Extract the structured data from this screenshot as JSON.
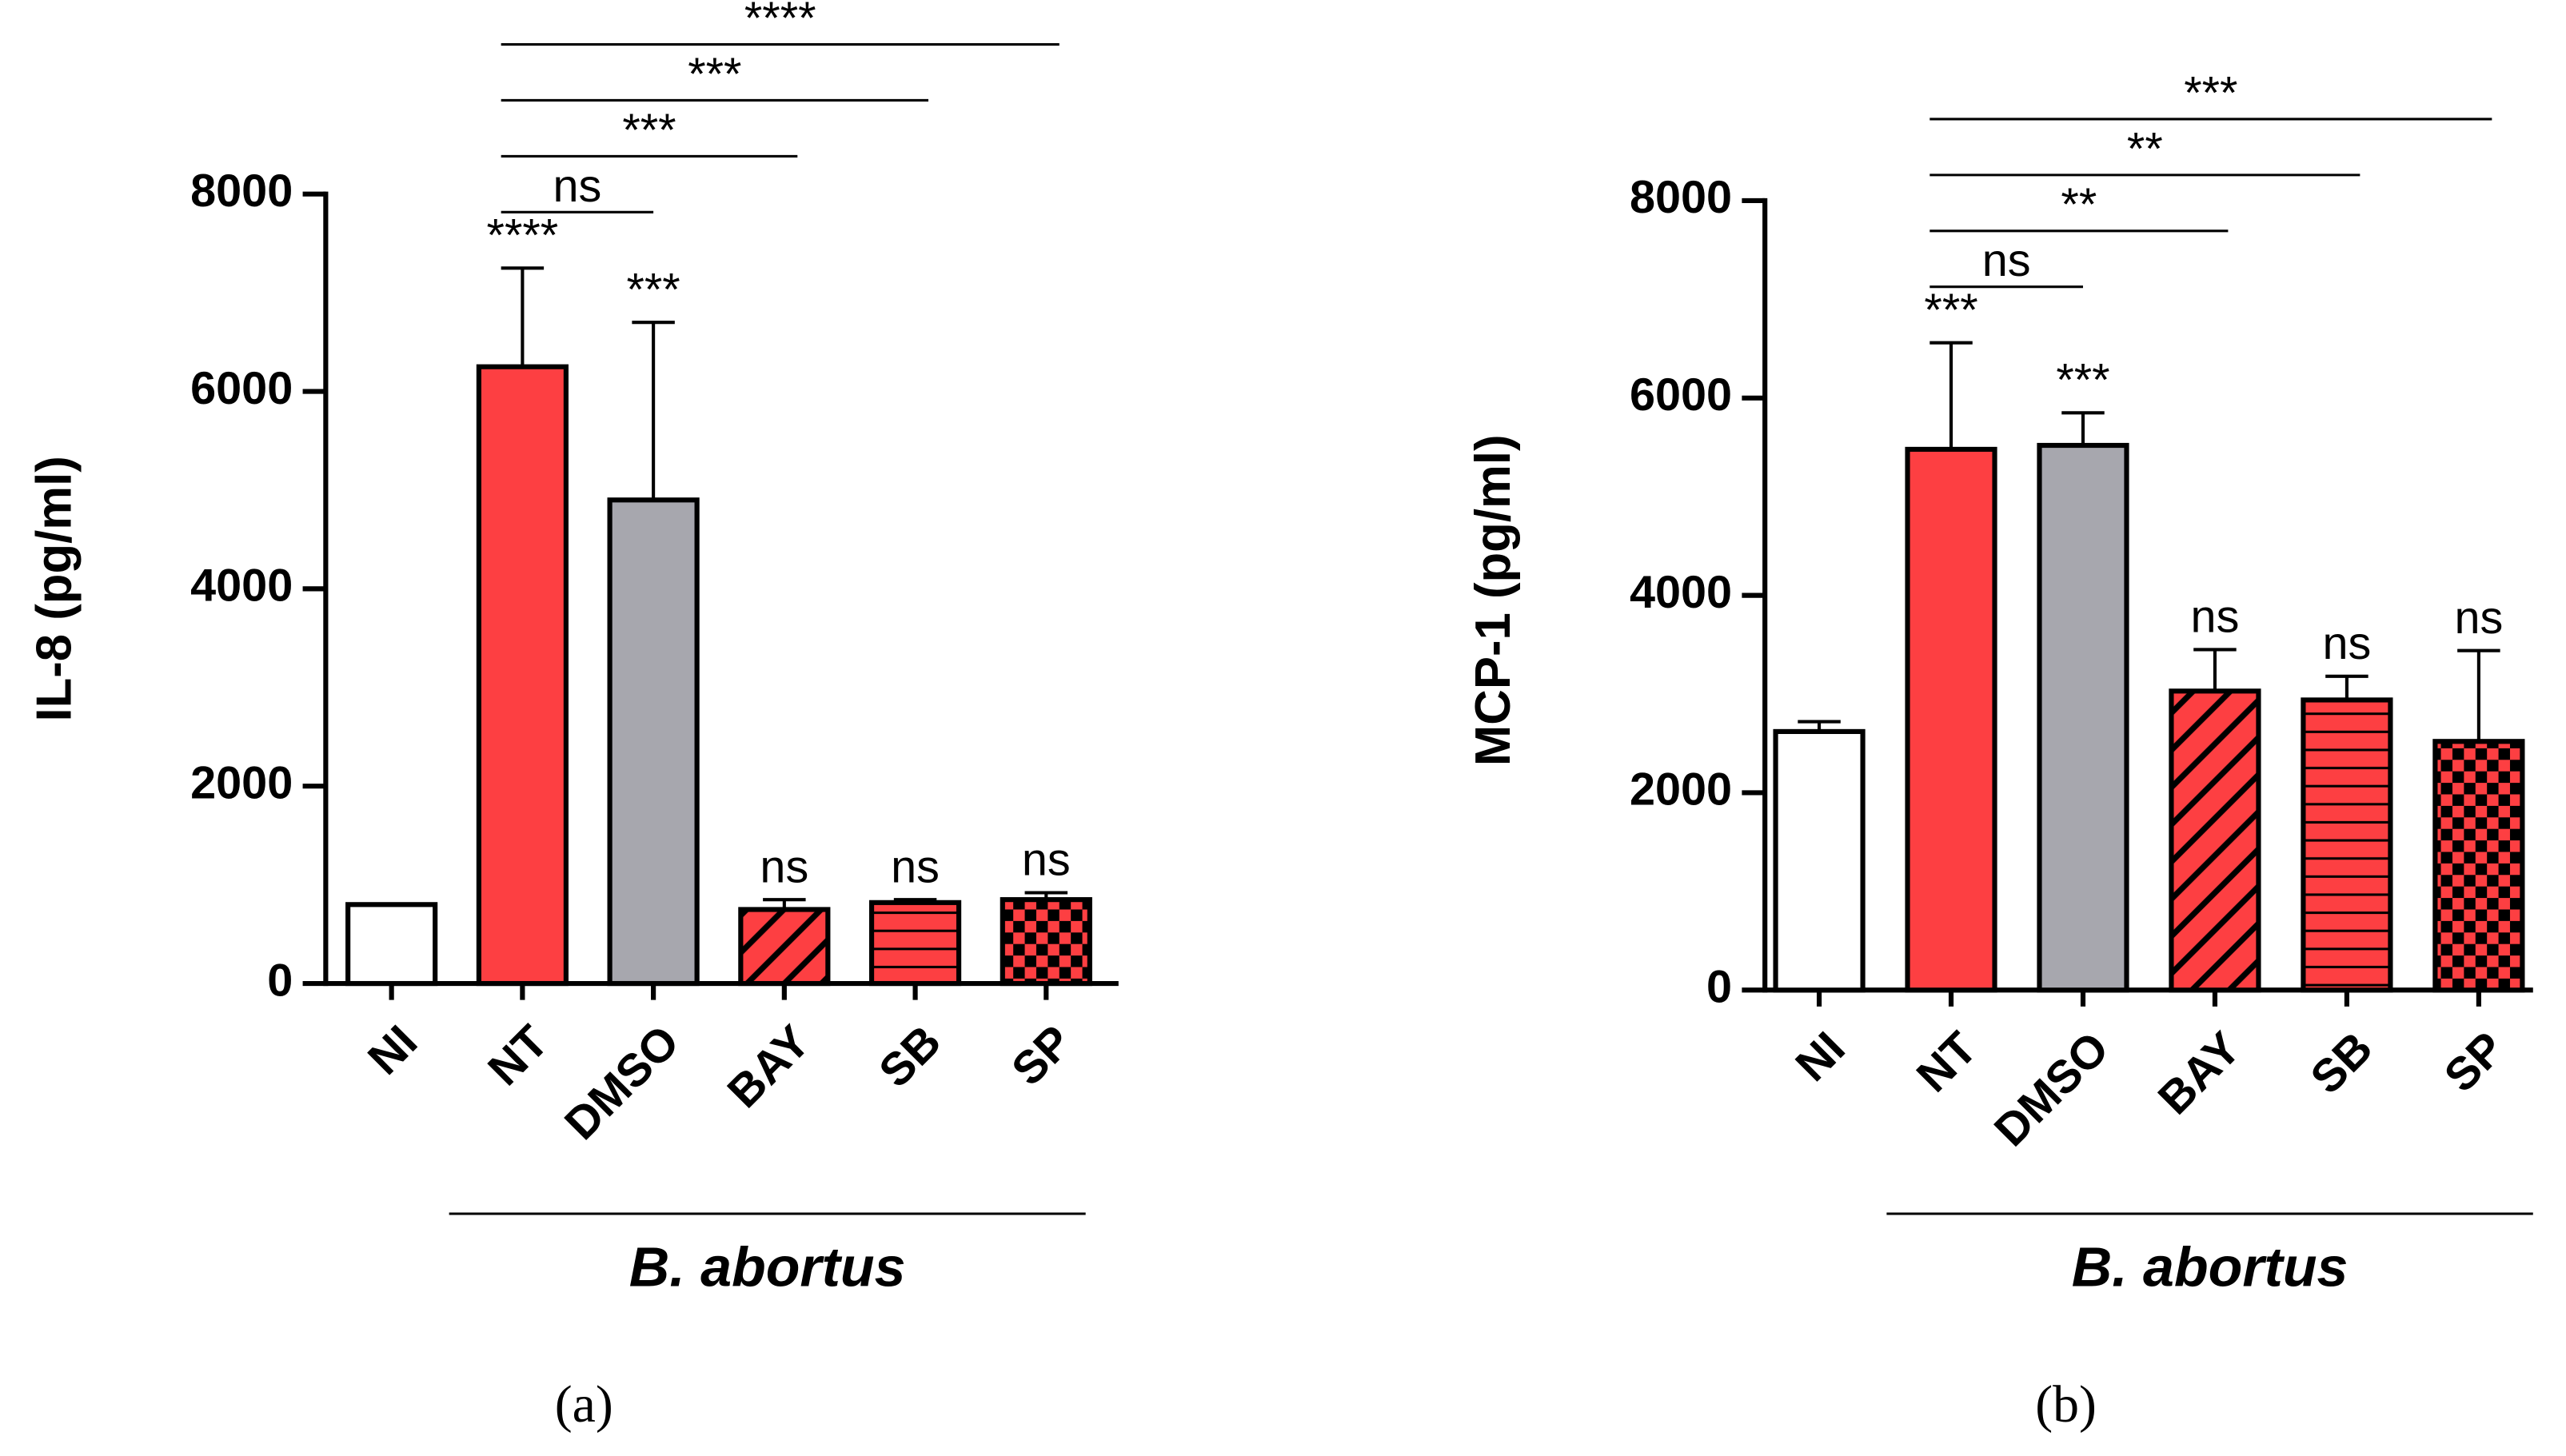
{
  "chart_data": [
    {
      "type": "bar",
      "panel_label": "(a)",
      "ylabel": "IL-8 (pg/ml)",
      "group_label": "B. abortus",
      "categories": [
        "NI",
        "NT",
        "DMSO",
        "BAY",
        "SB",
        "SP"
      ],
      "values": [
        800,
        6250,
        4900,
        750,
        820,
        850
      ],
      "errors": [
        0,
        1000,
        1800,
        100,
        30,
        70
      ],
      "colors": [
        "#ffffff",
        "#fd3f42",
        "#a7a7ae",
        "#fd3f42",
        "#fd3f42",
        "#fd3f42"
      ],
      "patterns": [
        "none",
        "none",
        "none",
        "diagonal",
        "horizontal",
        "checker"
      ],
      "annotations": [
        null,
        "****",
        "***",
        "ns",
        "ns",
        "ns"
      ],
      "comparisons": [
        {
          "from": "NT",
          "to": "DMSO",
          "label": "ns"
        },
        {
          "from": "NT",
          "to": "BAY",
          "label": "***"
        },
        {
          "from": "NT",
          "to": "SB",
          "label": "***"
        },
        {
          "from": "NT",
          "to": "SP",
          "label": "****"
        }
      ],
      "ylim": [
        0,
        8000
      ],
      "yticks": [
        0,
        2000,
        4000,
        6000,
        8000
      ]
    },
    {
      "type": "bar",
      "panel_label": "(b)",
      "ylabel": "MCP-1 (pg/ml)",
      "group_label": "B. abortus",
      "categories": [
        "NI",
        "NT",
        "DMSO",
        "BAY",
        "SB",
        "SP"
      ],
      "values": [
        2620,
        5480,
        5520,
        3030,
        2940,
        2520
      ],
      "errors": [
        100,
        1080,
        330,
        420,
        240,
        920
      ],
      "colors": [
        "#ffffff",
        "#fd3f42",
        "#a7a7ae",
        "#fd3f42",
        "#fd3f42",
        "#fd3f42"
      ],
      "patterns": [
        "none",
        "none",
        "none",
        "diagonal",
        "horizontal",
        "checker"
      ],
      "annotations": [
        null,
        "***",
        "***",
        "ns",
        "ns",
        "ns"
      ],
      "comparisons": [
        {
          "from": "NT",
          "to": "DMSO",
          "label": "ns"
        },
        {
          "from": "NT",
          "to": "BAY",
          "label": "**"
        },
        {
          "from": "NT",
          "to": "SB",
          "label": "**"
        },
        {
          "from": "NT",
          "to": "SP",
          "label": "***"
        }
      ],
      "ylim": [
        0,
        8000
      ],
      "yticks": [
        0,
        2000,
        4000,
        6000,
        8000
      ]
    }
  ]
}
